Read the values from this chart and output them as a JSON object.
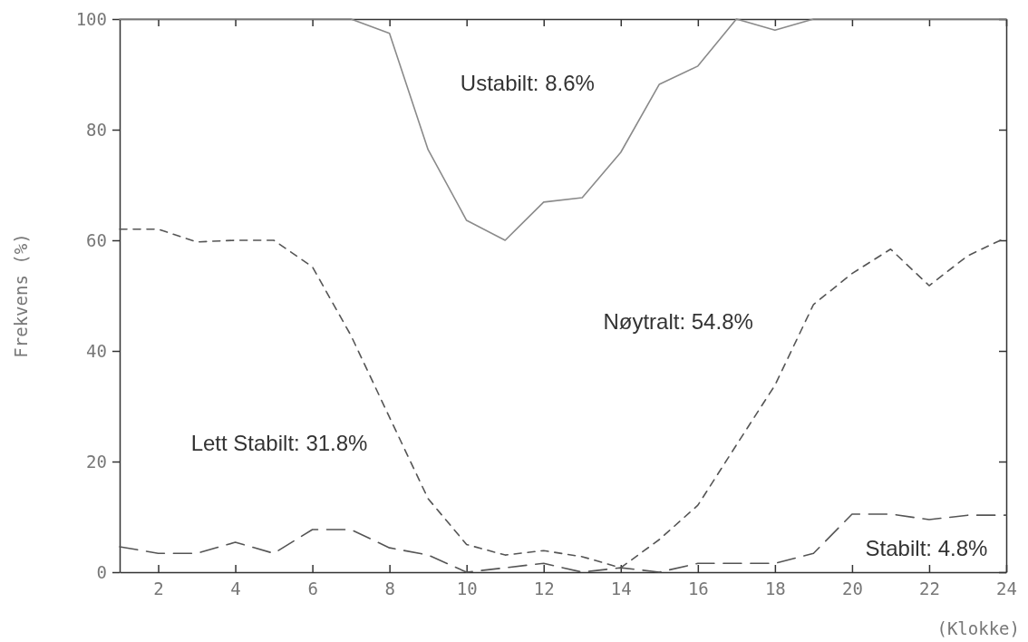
{
  "chart_data": {
    "type": "line",
    "xlabel": "(Klokke)",
    "ylabel": "Frekvens (%)",
    "x": [
      1,
      2,
      3,
      4,
      5,
      6,
      7,
      8,
      9,
      10,
      11,
      12,
      13,
      14,
      15,
      16,
      17,
      18,
      19,
      20,
      21,
      22,
      23,
      24
    ],
    "xlim": [
      1,
      24
    ],
    "xticks": [
      2,
      4,
      6,
      8,
      10,
      12,
      14,
      16,
      18,
      20,
      22,
      24
    ],
    "ylim": [
      0,
      100
    ],
    "yticks": [
      0,
      20,
      40,
      60,
      80,
      100
    ],
    "grid": false,
    "marker": "none",
    "series": [
      {
        "color": "#8a8a8a",
        "line_style": "solid",
        "values": [
          100,
          100,
          100,
          100,
          100,
          100,
          100,
          97.4,
          76.4,
          63.6,
          60,
          66.9,
          67.7,
          75.9,
          88.2,
          91.5,
          100,
          98,
          100,
          100,
          100,
          100,
          100,
          100
        ]
      },
      {
        "color": "#555555",
        "line_style": "dashed",
        "values": [
          62,
          62,
          59.7,
          60,
          60,
          55.2,
          42.8,
          28,
          13.3,
          5,
          3.1,
          3.9,
          2.8,
          0.8,
          5.9,
          12.1,
          23,
          33.8,
          48.4,
          54,
          58.4,
          51.8,
          57.2,
          60.5
        ]
      },
      {
        "color": "#555555",
        "line_style": "dashed",
        "values": [
          4.6,
          3.4,
          3.4,
          5.4,
          3.4,
          7.7,
          7.7,
          4.4,
          3.1,
          0,
          0.8,
          1.6,
          0,
          0.8,
          0,
          1.6,
          1.6,
          1.6,
          3.4,
          10.5,
          10.5,
          9.5,
          10.3,
          10.3
        ]
      }
    ],
    "annotations": [
      "Ustabilt: 8.6%",
      "Nøytralt: 54.8%",
      "Lett Stabilt: 31.8%",
      "Stabilt: 4.8%"
    ]
  }
}
